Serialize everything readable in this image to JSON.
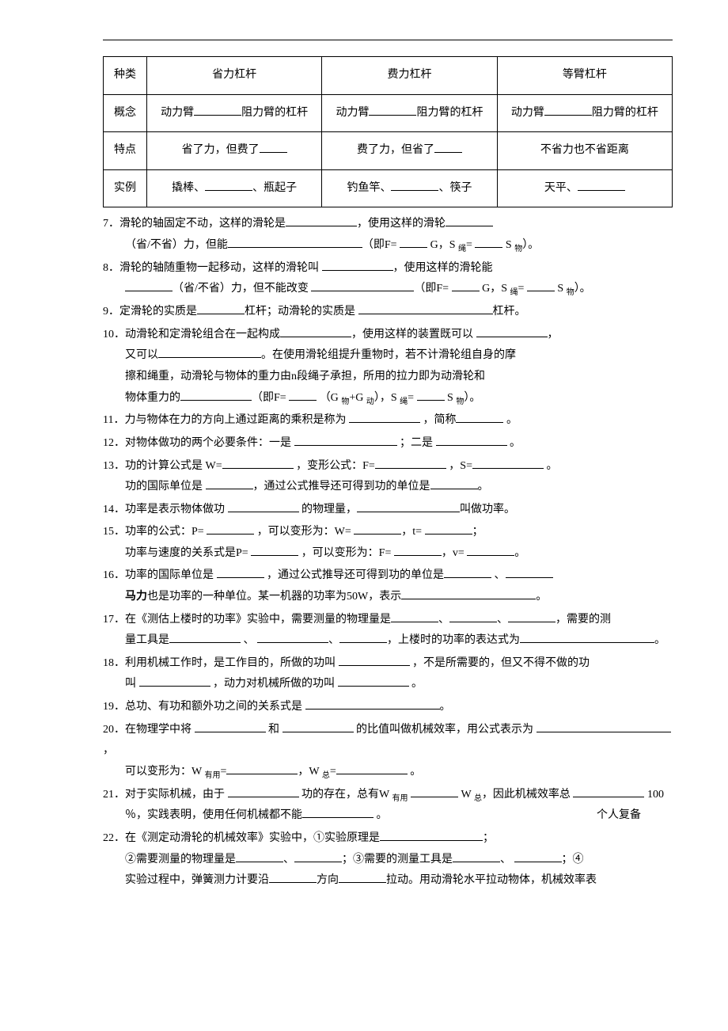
{
  "table": {
    "headers": {
      "col1": "种类",
      "col2": "省力杠杆",
      "col3": "费力杠杆",
      "col4": "等臂杠杆"
    },
    "row_concept": {
      "label": "概念",
      "c2a": "动力臂",
      "c2b": "阻力臂的杠杆",
      "c3a": "动力臂",
      "c3b": "阻力臂的杠杆",
      "c4a": "动力臂",
      "c4b": "阻力臂的杠杆"
    },
    "row_feature": {
      "label": "特点",
      "c2": "省了力，但费了",
      "c3": "费了力，但省了",
      "c4": "不省力也不省距离"
    },
    "row_example": {
      "label": "实例",
      "c2a": "撬棒、",
      "c2b": "、瓶起子",
      "c3a": "钓鱼竿、",
      "c3b": "、筷子",
      "c4a": "天平、"
    }
  },
  "q7": {
    "t1": "7．滑轮的轴固定不动，这样的滑轮是",
    "t2": "，使用这样的滑轮",
    "t3": "（省/不省）力，但能",
    "t4": "（即F= ",
    "t5": " G，S ",
    "sub1": "绳",
    "t6": "= ",
    "t7": " S ",
    "sub2": "物",
    "t8": "）。"
  },
  "q8": {
    "t1": "8．滑轮的轴随重物一起移动，这样的滑轮叫 ",
    "t2": "，使用这样的滑轮能",
    "t3": "（省/不省）力，但不能改变 ",
    "t4": "（即F= ",
    "t5": " G，S ",
    "sub1": "绳",
    "t6": "= ",
    "t7": " S ",
    "sub2": "物",
    "t8": "）。"
  },
  "q9": {
    "t1": "9．定滑轮的实质是",
    "t2": "杠杆；动滑轮的实质是 ",
    "t3": "杠杆。"
  },
  "q10": {
    "t1": "10．动滑轮和定滑轮组合在一起构成",
    "t2": "，使用这样的装置既可以 ",
    "t3": "，",
    "t4": "又可以",
    "t5": "。在使用滑轮组提升重物时，若不计滑轮组自身的摩",
    "t6": "擦和绳重，动滑轮与物体的重力由n段绳子承担，所用的拉力即为动滑轮和",
    "t7": "物体重力的",
    "t8": "（即F= ",
    "t9": " （G ",
    "sub1": "物",
    "t10": "+G ",
    "sub2": "动",
    "t11": "），S ",
    "sub3": "绳",
    "t12": "= ",
    "t13": " S ",
    "sub4": "物",
    "t14": "）。"
  },
  "q11": {
    "t1": "11．力与物体在力的方向上通过距离的乘积是称为 ",
    "t2": " ，简称",
    "t3": " 。"
  },
  "q12": {
    "t1": "12．对物体做功的两个必要条件：一是 ",
    "t2": " ；二是 ",
    "t3": " 。"
  },
  "q13": {
    "t1": "13．功的计算公式是 W=",
    "t2": " ，变形公式：F=",
    "t3": " ，S=",
    "t4": " 。",
    "t5": "功的国际单位是 ",
    "t6": "，通过公式推导还可得到功的单位是",
    "t7": "。"
  },
  "q14": {
    "t1": "14．功率是表示物体做功 ",
    "t2": " 的物理量，",
    "t3": "叫做功率。"
  },
  "q15": {
    "t1": "15．功率的公式：P= ",
    "t2": " ，可以变形为：W= ",
    "t3": "，t= ",
    "t4": "；",
    "t5": "功率与速度的关系式是P= ",
    "t6": " ，可以变形为：F= ",
    "t7": "，v= ",
    "t8": "。"
  },
  "q16": {
    "t1": "16．功率的国际单位是 ",
    "t2": " ，通过公式推导还可得到功的单位是",
    "t3": " 、",
    "bold": "马力",
    "t4": "也是功率的一种单位。某一机器的功率为50W，表示",
    "t5": "。"
  },
  "q17": {
    "t1": "17．在《测估上楼时的功率》实验中，需要测量的物理量是",
    "t2": "、",
    "t3": "、",
    "t4": "，需要的测",
    "t5": "量工具是",
    "t6": " 、 ",
    "t7": "、",
    "t8": "，上楼时的功率的表达式为",
    "t9": "。"
  },
  "q18": {
    "t1": "18．利用机械工作时，是工作目的，所做的功叫 ",
    "t2": " ，不是所需要的，但又不得不做的功",
    "t3": "叫 ",
    "t4": " ，动力对机械所做的功叫 ",
    "t5": " 。"
  },
  "q19": {
    "t1": "19．总功、有功和额外功之间的关系式是 ",
    "t2": "。"
  },
  "q20": {
    "t1": "20．在物理学中将 ",
    "t2": " 和 ",
    "t3": " 的比值叫做机械效率，用公式表示为 ",
    "t4": "，",
    "t5": "可以变形为：W ",
    "sub1": "有用",
    "t6": "=",
    "t7": "，W ",
    "sub2": "总",
    "t8": "=",
    "t9": " 。"
  },
  "q21": {
    "t1": "21．对于实际机械，由于 ",
    "t2": " 功的存在，总有W ",
    "sub1": "有用",
    "t3": " ",
    "t4": " W ",
    "sub2": "总",
    "t5": "，因此机械效率总 ",
    "t6": " 100",
    "t7": "％，实践表明，使用任何机械都不能",
    "t8": " 。",
    "note": "个人复备"
  },
  "q22": {
    "t1": "22．在《测定动滑轮的机械效率》实验中，①实验原理是",
    "t2": "；",
    "t3": "②需要测量的物理量是",
    "t4": "、",
    "t5": "；③需要的测量工具是",
    "t6": "、 ",
    "t7": "；④",
    "t8": "实验过程中，弹簧测力计要沿",
    "t9": "方向",
    "t10": "拉动。用动滑轮水平拉动物体，机械效率表"
  }
}
